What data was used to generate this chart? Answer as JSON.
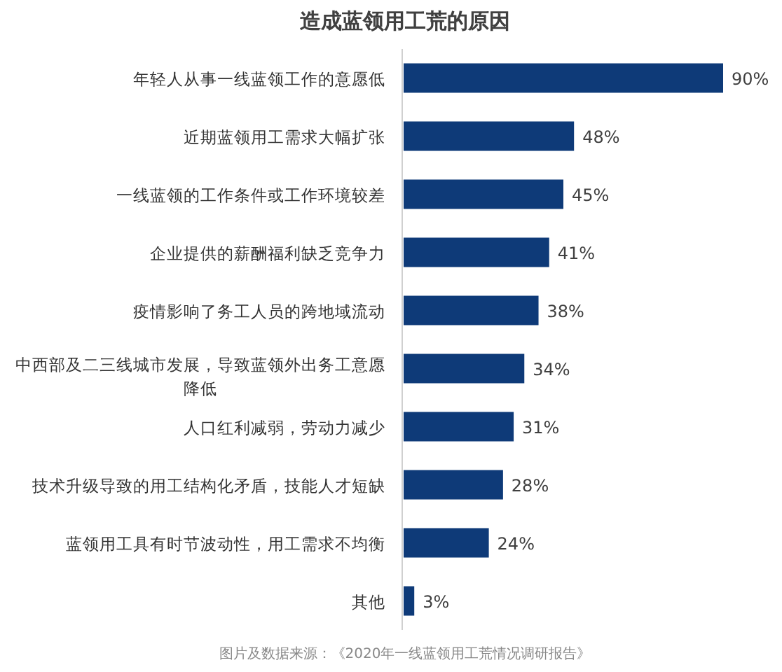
{
  "chart_data": {
    "type": "bar",
    "orientation": "horizontal",
    "title": "造成蓝领用工荒的原因",
    "categories": [
      "年轻人从事一线蓝领工作的意愿低",
      "近期蓝领用工需求大幅扩张",
      "一线蓝领的工作条件或工作环境较差",
      "企业提供的薪酬福利缺乏竞争力",
      "疫情影响了务工人员的跨地域流动",
      "中西部及二三线城市发展，导致蓝领外出务工意愿降低",
      "人口红利减弱，劳动力减少",
      "技术升级导致的用工结构化矛盾，技能人才短缺",
      "蓝领用工具有时节波动性，用工需求不均衡",
      "其他"
    ],
    "values": [
      90,
      48,
      45,
      41,
      38,
      34,
      31,
      28,
      24,
      3
    ],
    "value_labels": [
      "90%",
      "48%",
      "45%",
      "41%",
      "38%",
      "34%",
      "31%",
      "28%",
      "24%",
      "3%"
    ],
    "color": "#0e3a78",
    "annotations": [
      "图片及数据来源：《2020年一线蓝领用工荒情况调研报告》"
    ]
  }
}
